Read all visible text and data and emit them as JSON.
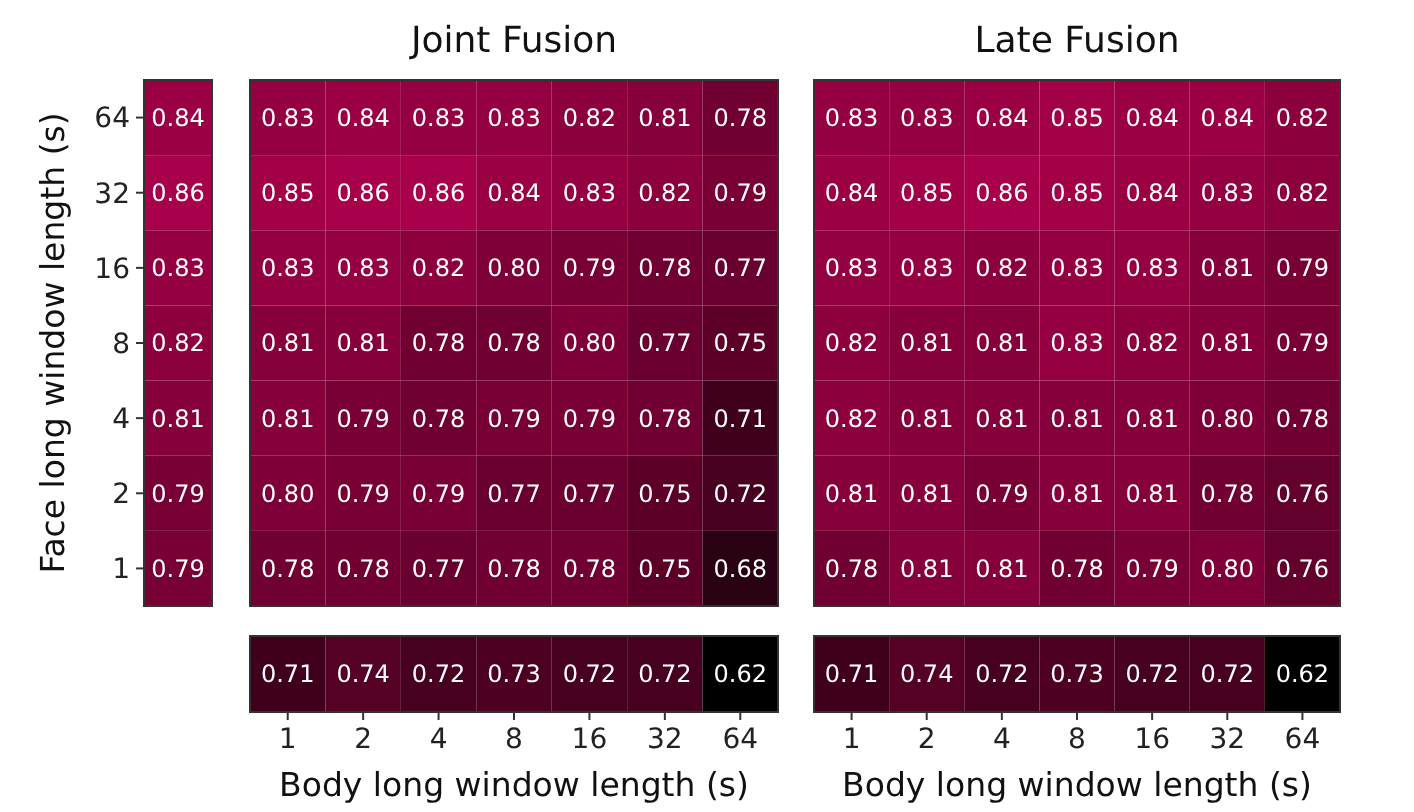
{
  "chart_data": [
    {
      "type": "heatmap",
      "categories": [
        null
      ],
      "y_categories": [
        "64",
        "32",
        "16",
        "8",
        "4",
        "2",
        "1"
      ],
      "ylabel": "Face long window length (s)",
      "tick_labels": "y",
      "color": "#a8004a",
      "cells": [
        [
          0.84
        ],
        [
          0.86
        ],
        [
          0.83
        ],
        [
          0.82
        ],
        [
          0.81
        ],
        [
          0.79
        ],
        [
          0.79
        ]
      ],
      "cell_labels": [
        [
          "0.84"
        ],
        [
          "0.86"
        ],
        [
          "0.83"
        ],
        [
          "0.82"
        ],
        [
          "0.81"
        ],
        [
          "0.79"
        ],
        [
          "0.79"
        ]
      ]
    },
    {
      "type": "heatmap",
      "title": "Joint Fusion",
      "categories": [
        "1",
        "2",
        "4",
        "8",
        "16",
        "32",
        "64"
      ],
      "y_categories": [
        "64",
        "32",
        "16",
        "8",
        "4",
        "2",
        "1"
      ],
      "tick_labels": false,
      "color": "#a8004a",
      "cells": [
        [
          0.83,
          0.84,
          0.83,
          0.83,
          0.82,
          0.81,
          0.78
        ],
        [
          0.85,
          0.86,
          0.86,
          0.84,
          0.83,
          0.82,
          0.79
        ],
        [
          0.83,
          0.83,
          0.82,
          0.8,
          0.79,
          0.78,
          0.77
        ],
        [
          0.81,
          0.81,
          0.78,
          0.78,
          0.8,
          0.77,
          0.75
        ],
        [
          0.81,
          0.79,
          0.78,
          0.79,
          0.79,
          0.78,
          0.71
        ],
        [
          0.8,
          0.79,
          0.79,
          0.77,
          0.77,
          0.75,
          0.72
        ],
        [
          0.78,
          0.78,
          0.77,
          0.78,
          0.78,
          0.75,
          0.68
        ]
      ],
      "cell_labels": [
        [
          "0.83",
          "0.84",
          "0.83",
          "0.83",
          "0.82",
          "0.81",
          "0.78"
        ],
        [
          "0.85",
          "0.86",
          "0.86",
          "0.84",
          "0.83",
          "0.82",
          "0.79"
        ],
        [
          "0.83",
          "0.83",
          "0.82",
          "0.80",
          "0.79",
          "0.78",
          "0.77"
        ],
        [
          "0.81",
          "0.81",
          "0.78",
          "0.78",
          "0.80",
          "0.77",
          "0.75"
        ],
        [
          "0.81",
          "0.79",
          "0.78",
          "0.79",
          "0.79",
          "0.78",
          "0.71"
        ],
        [
          "0.80",
          "0.79",
          "0.79",
          "0.77",
          "0.77",
          "0.75",
          "0.72"
        ],
        [
          "0.78",
          "0.78",
          "0.77",
          "0.78",
          "0.78",
          "0.75",
          "0.68"
        ]
      ]
    },
    {
      "type": "heatmap",
      "categories": [
        "1",
        "2",
        "4",
        "8",
        "16",
        "32",
        "64"
      ],
      "y_categories": [
        null
      ],
      "xlabel": "Body long window length (s)",
      "tick_labels": "x",
      "color": "#a8004a",
      "cells": [
        [
          0.71,
          0.74,
          0.72,
          0.73,
          0.72,
          0.72,
          0.62
        ]
      ],
      "cell_labels": [
        [
          "0.71",
          "0.74",
          "0.72",
          "0.73",
          "0.72",
          "0.72",
          "0.62"
        ]
      ]
    },
    {
      "type": "heatmap",
      "title": "Late Fusion",
      "categories": [
        "1",
        "2",
        "4",
        "8",
        "16",
        "32",
        "64"
      ],
      "y_categories": [
        "64",
        "32",
        "16",
        "8",
        "4",
        "2",
        "1"
      ],
      "tick_labels": false,
      "color": "#a8004a",
      "cells": [
        [
          0.83,
          0.83,
          0.84,
          0.85,
          0.84,
          0.84,
          0.82
        ],
        [
          0.84,
          0.85,
          0.86,
          0.85,
          0.84,
          0.83,
          0.82
        ],
        [
          0.83,
          0.83,
          0.82,
          0.83,
          0.83,
          0.81,
          0.79
        ],
        [
          0.82,
          0.81,
          0.81,
          0.83,
          0.82,
          0.81,
          0.79
        ],
        [
          0.82,
          0.81,
          0.81,
          0.81,
          0.81,
          0.8,
          0.78
        ],
        [
          0.81,
          0.81,
          0.79,
          0.81,
          0.81,
          0.78,
          0.76
        ],
        [
          0.78,
          0.81,
          0.81,
          0.78,
          0.79,
          0.8,
          0.76
        ]
      ],
      "cell_labels": [
        [
          "0.83",
          "0.83",
          "0.84",
          "0.85",
          "0.84",
          "0.84",
          "0.82"
        ],
        [
          "0.84",
          "0.85",
          "0.86",
          "0.85",
          "0.84",
          "0.83",
          "0.82"
        ],
        [
          "0.83",
          "0.83",
          "0.82",
          "0.83",
          "0.83",
          "0.81",
          "0.79"
        ],
        [
          "0.82",
          "0.81",
          "0.81",
          "0.83",
          "0.82",
          "0.81",
          "0.79"
        ],
        [
          "0.82",
          "0.81",
          "0.81",
          "0.81",
          "0.81",
          "0.80",
          "0.78"
        ],
        [
          "0.81",
          "0.81",
          "0.79",
          "0.81",
          "0.81",
          "0.78",
          "0.76"
        ],
        [
          "0.78",
          "0.81",
          "0.81",
          "0.78",
          "0.79",
          "0.80",
          "0.76"
        ]
      ]
    },
    {
      "type": "heatmap",
      "categories": [
        "1",
        "2",
        "4",
        "8",
        "16",
        "32",
        "64"
      ],
      "y_categories": [
        null
      ],
      "xlabel": "Body long window length (s)",
      "tick_labels": "x",
      "color": "#a8004a",
      "cells": [
        [
          0.71,
          0.74,
          0.72,
          0.73,
          0.72,
          0.72,
          0.62
        ]
      ],
      "cell_labels": [
        [
          "0.71",
          "0.74",
          "0.72",
          "0.73",
          "0.72",
          "0.72",
          "0.62"
        ]
      ]
    }
  ]
}
